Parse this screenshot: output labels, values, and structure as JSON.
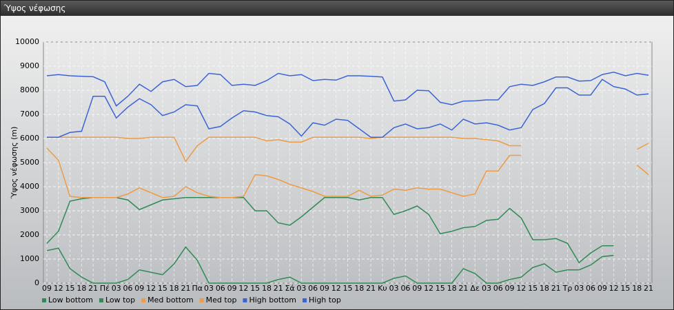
{
  "window_title": "Ύψος νέφωσης",
  "chart_data": {
    "type": "line",
    "y_label": "Ύψος νέφωσης (m)",
    "categories": [
      "09",
      "12",
      "15",
      "18",
      "21",
      "Πέ",
      "03",
      "06",
      "09",
      "12",
      "15",
      "18",
      "21",
      "Πα",
      "03",
      "06",
      "09",
      "12",
      "15",
      "18",
      "21",
      "Σά",
      "03",
      "06",
      "09",
      "12",
      "15",
      "18",
      "21",
      "Κυ",
      "03",
      "06",
      "09",
      "12",
      "15",
      "18",
      "21",
      "Δε",
      "03",
      "06",
      "09",
      "12",
      "15",
      "18",
      "21",
      "Τρ",
      "03",
      "06",
      "09",
      "12",
      "15",
      "18",
      "21"
    ],
    "ylim": [
      0,
      10000
    ],
    "yticks": [
      0,
      1000,
      2000,
      3000,
      4000,
      5000,
      6000,
      7000,
      8000,
      9000,
      10000
    ],
    "grid": true,
    "series": [
      {
        "name": "Low bottom",
        "color": "#2f8a55",
        "values": [
          1350,
          1450,
          600,
          250,
          0,
          0,
          0,
          150,
          550,
          450,
          350,
          800,
          1500,
          950,
          0,
          0,
          0,
          0,
          0,
          0,
          150,
          250,
          0,
          0,
          0,
          0,
          0,
          0,
          0,
          0,
          200,
          300,
          0,
          0,
          0,
          0,
          600,
          400,
          0,
          0,
          150,
          250,
          650,
          800,
          450,
          550,
          550,
          750,
          1100,
          1150,
          null,
          null,
          null
        ]
      },
      {
        "name": "Low top",
        "color": "#2f8a55",
        "values": [
          1650,
          2150,
          3400,
          3500,
          3550,
          3550,
          3550,
          3450,
          3050,
          3250,
          3450,
          3500,
          3550,
          3550,
          3550,
          3550,
          3550,
          3550,
          3000,
          3000,
          2500,
          2400,
          2750,
          3150,
          3550,
          3550,
          3550,
          3450,
          3550,
          3550,
          2850,
          3000,
          3200,
          2850,
          2050,
          2150,
          2300,
          2350,
          2600,
          2650,
          3100,
          2700,
          1800,
          1800,
          1850,
          1650,
          850,
          1250,
          1550,
          1550,
          null,
          null,
          null
        ]
      },
      {
        "name": "Med bottom",
        "color": "#ef9a45",
        "values": [
          5600,
          5100,
          3600,
          3550,
          3550,
          3550,
          3550,
          3700,
          3950,
          3750,
          3550,
          3600,
          4000,
          3750,
          3600,
          3550,
          3550,
          3600,
          4500,
          4450,
          4300,
          4100,
          3950,
          3800,
          3600,
          3600,
          3600,
          3850,
          3600,
          3650,
          3900,
          3850,
          3950,
          3900,
          3900,
          3750,
          3600,
          3700,
          4650,
          4650,
          5300,
          5300,
          null,
          null,
          null,
          null,
          null,
          null,
          null,
          null,
          null,
          4900,
          4500
        ]
      },
      {
        "name": "Med top",
        "color": "#ef9a45",
        "values": [
          6050,
          6050,
          6050,
          6050,
          6050,
          6050,
          6050,
          6000,
          6000,
          6050,
          6050,
          6050,
          5050,
          5700,
          6050,
          6050,
          6050,
          6050,
          6050,
          5900,
          5950,
          5850,
          5850,
          6050,
          6050,
          6050,
          6050,
          6050,
          6000,
          6050,
          6050,
          6050,
          6050,
          6050,
          6050,
          6050,
          6000,
          6000,
          5950,
          5900,
          5700,
          5700,
          null,
          null,
          null,
          null,
          null,
          null,
          null,
          null,
          null,
          5550,
          5800
        ]
      },
      {
        "name": "High bottom",
        "color": "#3a64d6",
        "values": [
          6050,
          6050,
          6250,
          6300,
          7750,
          7750,
          6850,
          7300,
          7650,
          7400,
          6950,
          7100,
          7400,
          7350,
          6400,
          6500,
          6850,
          7150,
          7100,
          6950,
          6900,
          6600,
          6100,
          6650,
          6550,
          6800,
          6750,
          6400,
          6050,
          6050,
          6450,
          6600,
          6400,
          6450,
          6600,
          6350,
          6800,
          6600,
          6650,
          6550,
          6350,
          6450,
          7200,
          7450,
          8100,
          8100,
          7800,
          7800,
          8450,
          8150,
          8050,
          7800,
          7850
        ]
      },
      {
        "name": "High top",
        "color": "#3a64d6",
        "values": [
          8600,
          8650,
          8600,
          8580,
          8560,
          8350,
          7350,
          7750,
          8250,
          7950,
          8350,
          8450,
          8150,
          8200,
          8700,
          8650,
          8200,
          8250,
          8200,
          8400,
          8700,
          8600,
          8650,
          8400,
          8450,
          8420,
          8600,
          8600,
          8580,
          8550,
          7550,
          7600,
          8000,
          7980,
          7500,
          7400,
          7550,
          7560,
          7600,
          7600,
          8150,
          8250,
          8200,
          8350,
          8550,
          8550,
          8380,
          8400,
          8650,
          8750,
          8600,
          8700,
          8620
        ]
      }
    ]
  }
}
